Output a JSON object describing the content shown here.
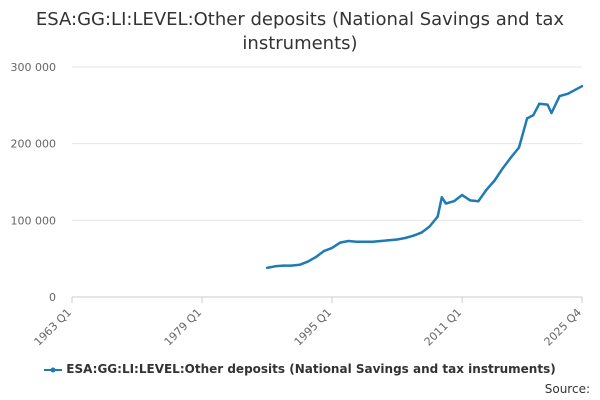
{
  "chart_data": {
    "type": "line",
    "title": "ESA:GG:LI:LEVEL:Other deposits (National Savings and tax instruments)",
    "xlabel": "",
    "ylabel": "",
    "x_ticks": [
      "1963 Q1",
      "1979 Q1",
      "1995 Q1",
      "2011 Q1",
      "2025 Q4"
    ],
    "y_ticks": [
      "0",
      "100 000",
      "200 000",
      "300 000"
    ],
    "ylim": [
      0,
      300000
    ],
    "xlim": [
      "1963 Q1",
      "2025 Q4"
    ],
    "grid": "horizontal",
    "legend_position": "bottom",
    "series": [
      {
        "name": "ESA:GG:LI:LEVEL:Other deposits (National Savings and tax instruments)",
        "color": "#1f7ab5",
        "points": [
          [
            "1987 Q1",
            38000
          ],
          [
            "1988 Q1",
            40000
          ],
          [
            "1989 Q1",
            41000
          ],
          [
            "1990 Q1",
            41000
          ],
          [
            "1991 Q1",
            42000
          ],
          [
            "1992 Q1",
            46000
          ],
          [
            "1993 Q1",
            52000
          ],
          [
            "1994 Q1",
            60000
          ],
          [
            "1995 Q1",
            64000
          ],
          [
            "1996 Q1",
            71000
          ],
          [
            "1997 Q1",
            73000
          ],
          [
            "1998 Q1",
            72000
          ],
          [
            "1999 Q1",
            72000
          ],
          [
            "2000 Q1",
            72000
          ],
          [
            "2001 Q1",
            73000
          ],
          [
            "2002 Q1",
            74000
          ],
          [
            "2003 Q1",
            75000
          ],
          [
            "2004 Q1",
            77000
          ],
          [
            "2005 Q1",
            80000
          ],
          [
            "2006 Q1",
            84000
          ],
          [
            "2007 Q1",
            92000
          ],
          [
            "2008 Q1",
            105000
          ],
          [
            "2008 Q3",
            130000
          ],
          [
            "2009 Q1",
            122000
          ],
          [
            "2010 Q1",
            125000
          ],
          [
            "2011 Q1",
            133000
          ],
          [
            "2012 Q1",
            126000
          ],
          [
            "2013 Q1",
            125000
          ],
          [
            "2014 Q1",
            140000
          ],
          [
            "2015 Q1",
            152000
          ],
          [
            "2016 Q1",
            168000
          ],
          [
            "2017 Q1",
            182000
          ],
          [
            "2018 Q1",
            195000
          ],
          [
            "2019 Q1",
            233000
          ],
          [
            "2019 Q4",
            237000
          ],
          [
            "2020 Q3",
            252000
          ],
          [
            "2021 Q3",
            251000
          ],
          [
            "2022 Q1",
            240000
          ],
          [
            "2023 Q1",
            262000
          ],
          [
            "2024 Q1",
            265000
          ],
          [
            "2025 Q4",
            275000
          ]
        ]
      }
    ]
  },
  "source_label": "Source:"
}
